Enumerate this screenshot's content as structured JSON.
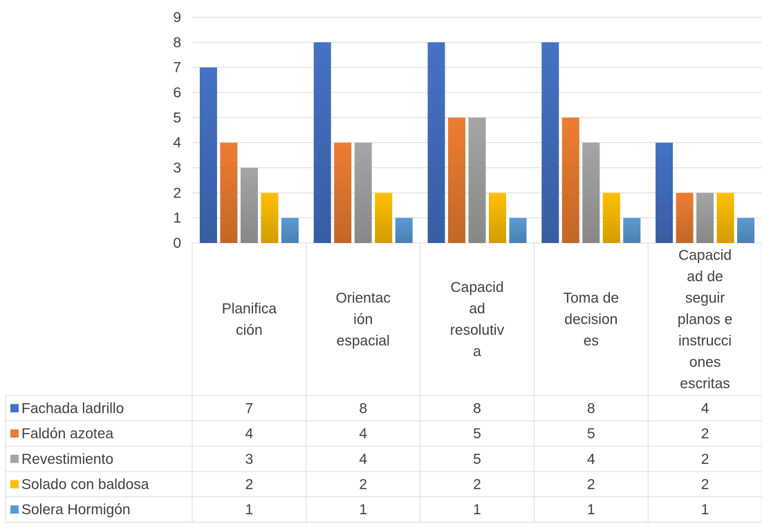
{
  "chart_data": {
    "type": "bar",
    "title": "",
    "xlabel": "",
    "ylabel": "",
    "ylim": [
      0,
      9
    ],
    "yticks": [
      "0",
      "1",
      "2",
      "3",
      "4",
      "5",
      "6",
      "7",
      "8",
      "9"
    ],
    "grid": true,
    "legend": "data-table",
    "categories": [
      [
        "Planifica",
        "ción"
      ],
      [
        "Orientac",
        "ión",
        "espacial"
      ],
      [
        "Capacid",
        "ad",
        "resolutiv",
        "a"
      ],
      [
        "Toma de",
        "decision",
        "es"
      ],
      [
        "Capacid",
        "ad de",
        "seguir",
        "planos e",
        "instrucci",
        "ones",
        "escritas"
      ]
    ],
    "series": [
      {
        "name": "Fachada ladrillo",
        "color": "#4472C4",
        "values": [
          7,
          8,
          8,
          8,
          4
        ]
      },
      {
        "name": "Faldón azotea",
        "color": "#ED7D31",
        "values": [
          4,
          4,
          5,
          5,
          2
        ]
      },
      {
        "name": "Revestimiento",
        "color": "#A5A5A5",
        "values": [
          3,
          4,
          5,
          4,
          2
        ]
      },
      {
        "name": "Solado con baldosa",
        "color": "#FFC000",
        "values": [
          2,
          2,
          2,
          2,
          2
        ]
      },
      {
        "name": "Solera Hormigón",
        "color": "#5B9BD5",
        "values": [
          1,
          1,
          1,
          1,
          1
        ]
      }
    ]
  }
}
